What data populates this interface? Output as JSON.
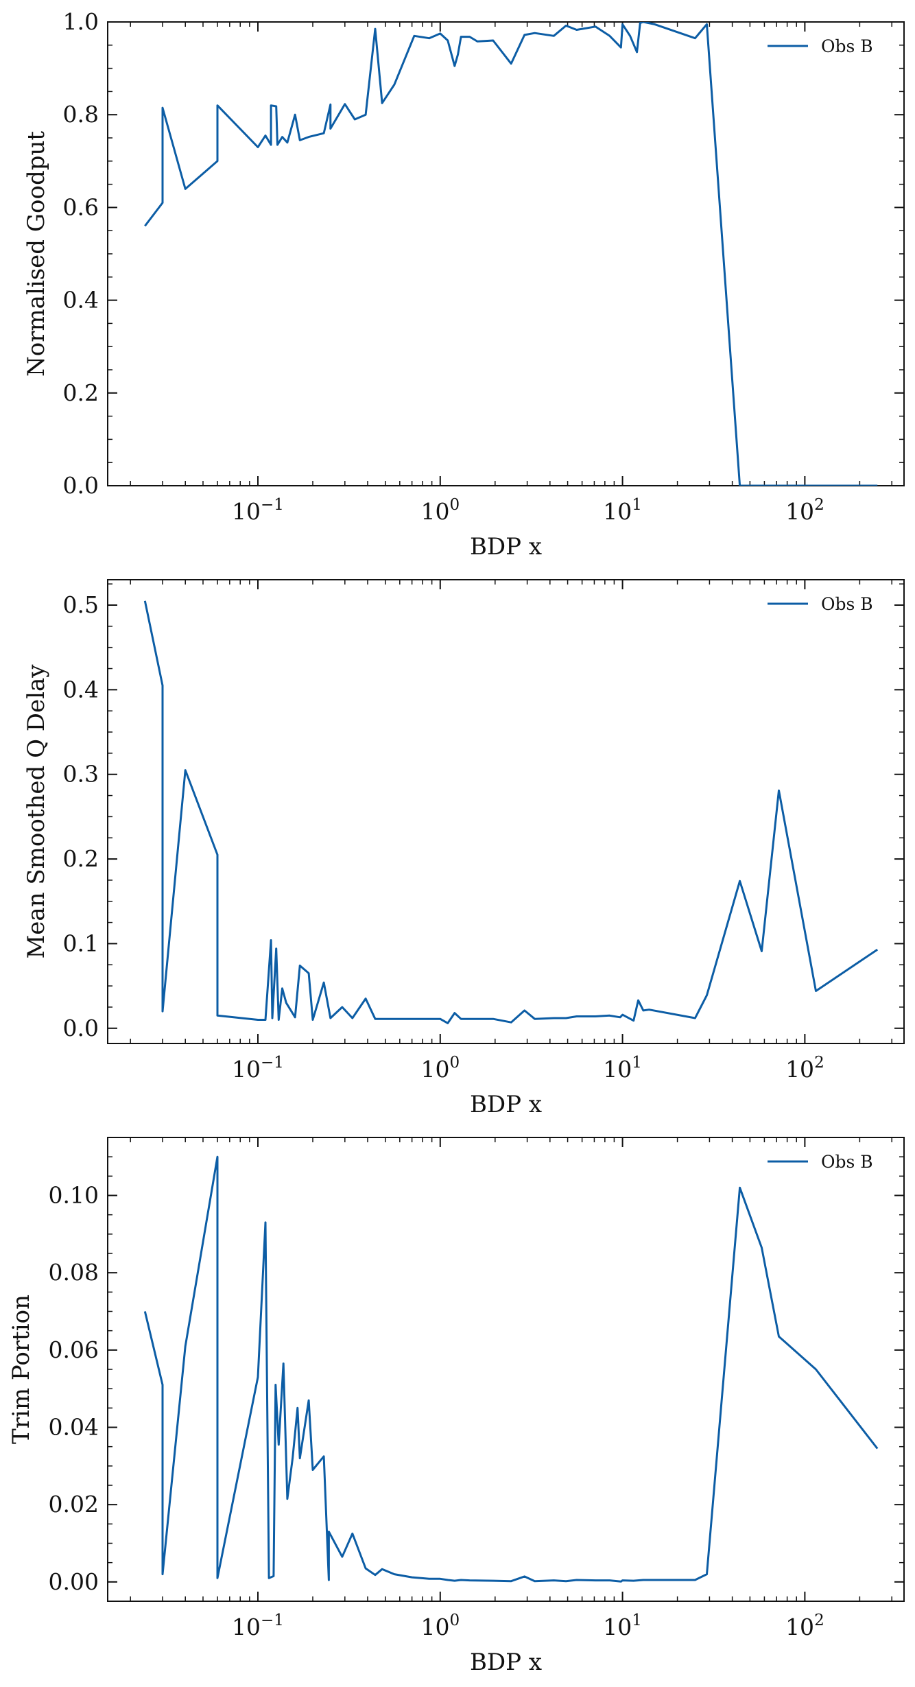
{
  "chart_data": [
    {
      "type": "line",
      "xlabel": "BDP x",
      "ylabel": "Normalised Goodput",
      "xscale": "log",
      "xlim": [
        0.015,
        350
      ],
      "ylim": [
        0,
        1.0
      ],
      "yticks": [
        0.0,
        0.2,
        0.4,
        0.6,
        0.8,
        1.0
      ],
      "ytick_labels": [
        "0.0",
        "0.2",
        "0.4",
        "0.6",
        "0.8",
        "1.0"
      ],
      "xtick_labels": [
        "10",
        "10",
        "10",
        "10"
      ],
      "xtick_exponents": [
        "−1",
        "0",
        "1",
        "2"
      ],
      "legend_position": "top-right",
      "series": [
        {
          "name": "Obs B",
          "color": "#0C5DA5",
          "x": [
            0.024,
            0.03,
            0.03,
            0.04,
            0.06,
            0.06,
            0.1,
            0.11,
            0.118,
            0.118,
            0.126,
            0.128,
            0.136,
            0.145,
            0.16,
            0.17,
            0.19,
            0.23,
            0.25,
            0.25,
            0.3,
            0.34,
            0.39,
            0.44,
            0.48,
            0.56,
            0.72,
            0.87,
            1.0,
            1.1,
            1.2,
            1.25,
            1.3,
            1.45,
            1.6,
            1.95,
            2.45,
            2.9,
            3.3,
            4.2,
            4.9,
            5.6,
            7.1,
            8.5,
            9.8,
            10.0,
            11.0,
            12.0,
            12.5,
            13.0,
            15.0,
            25.0,
            29.0,
            44.0,
            58.0,
            72.0,
            115.0,
            250.0
          ],
          "y": [
            0.56,
            0.61,
            0.815,
            0.64,
            0.7,
            0.82,
            0.73,
            0.755,
            0.735,
            0.82,
            0.818,
            0.735,
            0.752,
            0.74,
            0.8,
            0.745,
            0.752,
            0.76,
            0.822,
            0.77,
            0.823,
            0.79,
            0.8,
            0.985,
            0.825,
            0.865,
            0.97,
            0.965,
            0.975,
            0.96,
            0.905,
            0.93,
            0.968,
            0.968,
            0.958,
            0.96,
            0.91,
            0.972,
            0.976,
            0.97,
            0.992,
            0.983,
            0.99,
            0.97,
            0.945,
            0.995,
            0.97,
            0.935,
            0.998,
            1.0,
            0.995,
            0.965,
            0.995,
            0.0,
            0.0,
            0.0,
            0.0,
            0.0
          ]
        }
      ]
    },
    {
      "type": "line",
      "xlabel": "BDP x",
      "ylabel": "Mean Smoothed Q Delay",
      "xscale": "log",
      "xlim": [
        0.015,
        350
      ],
      "ylim": [
        -0.018,
        0.53
      ],
      "yticks": [
        0.0,
        0.1,
        0.2,
        0.3,
        0.4,
        0.5
      ],
      "ytick_labels": [
        "0.0",
        "0.1",
        "0.2",
        "0.3",
        "0.4",
        "0.5"
      ],
      "xtick_labels": [
        "10",
        "10",
        "10",
        "10"
      ],
      "xtick_exponents": [
        "−1",
        "0",
        "1",
        "2"
      ],
      "legend_position": "top-right",
      "series": [
        {
          "name": "Obs B",
          "color": "#0C5DA5",
          "x": [
            0.024,
            0.03,
            0.03,
            0.04,
            0.06,
            0.06,
            0.1,
            0.11,
            0.118,
            0.12,
            0.126,
            0.13,
            0.136,
            0.143,
            0.16,
            0.17,
            0.19,
            0.2,
            0.23,
            0.25,
            0.29,
            0.33,
            0.39,
            0.44,
            0.48,
            0.56,
            0.7,
            0.9,
            1.0,
            1.1,
            1.2,
            1.3,
            1.45,
            1.95,
            2.45,
            2.9,
            3.3,
            4.2,
            4.9,
            5.6,
            7.1,
            8.5,
            9.7,
            10.0,
            11.5,
            12.2,
            13.0,
            14.0,
            25.0,
            29.0,
            44.0,
            58.0,
            72.0,
            115.0,
            250.0
          ],
          "y": [
            0.505,
            0.405,
            0.02,
            0.305,
            0.205,
            0.015,
            0.01,
            0.01,
            0.104,
            0.012,
            0.094,
            0.01,
            0.047,
            0.03,
            0.013,
            0.074,
            0.065,
            0.01,
            0.054,
            0.012,
            0.025,
            0.012,
            0.035,
            0.011,
            0.011,
            0.011,
            0.011,
            0.011,
            0.011,
            0.006,
            0.018,
            0.011,
            0.011,
            0.011,
            0.007,
            0.021,
            0.011,
            0.012,
            0.012,
            0.014,
            0.014,
            0.015,
            0.013,
            0.016,
            0.009,
            0.033,
            0.021,
            0.022,
            0.012,
            0.039,
            0.174,
            0.091,
            0.281,
            0.044,
            0.093
          ]
        }
      ]
    },
    {
      "type": "line",
      "xlabel": "BDP x",
      "ylabel": "Trim Portion",
      "xscale": "log",
      "xlim": [
        0.015,
        350
      ],
      "ylim": [
        -0.005,
        0.115
      ],
      "yticks": [
        0.0,
        0.02,
        0.04,
        0.06,
        0.08,
        0.1
      ],
      "ytick_labels": [
        "0.00",
        "0.02",
        "0.04",
        "0.06",
        "0.08",
        "0.10"
      ],
      "xtick_labels": [
        "10",
        "10",
        "10",
        "10"
      ],
      "xtick_exponents": [
        "−1",
        "0",
        "1",
        "2"
      ],
      "legend_position": "top-right",
      "series": [
        {
          "name": "Obs B",
          "color": "#0C5DA5",
          "x": [
            0.024,
            0.03,
            0.03,
            0.04,
            0.06,
            0.06,
            0.1,
            0.11,
            0.115,
            0.122,
            0.125,
            0.13,
            0.138,
            0.145,
            0.155,
            0.165,
            0.17,
            0.19,
            0.2,
            0.23,
            0.245,
            0.245,
            0.29,
            0.33,
            0.39,
            0.44,
            0.48,
            0.56,
            0.7,
            0.87,
            1.0,
            1.1,
            1.2,
            1.3,
            1.45,
            1.95,
            2.45,
            2.9,
            3.3,
            4.2,
            4.9,
            5.6,
            7.1,
            8.5,
            9.8,
            10.0,
            11.5,
            13.0,
            25.0,
            29.0,
            44.0,
            58.0,
            72.0,
            115.0,
            250.0
          ],
          "y": [
            0.07,
            0.051,
            0.002,
            0.061,
            0.11,
            0.001,
            0.053,
            0.093,
            0.001,
            0.0015,
            0.051,
            0.0355,
            0.0565,
            0.0215,
            0.032,
            0.045,
            0.032,
            0.047,
            0.029,
            0.0325,
            0.0005,
            0.013,
            0.0065,
            0.0125,
            0.0035,
            0.0018,
            0.0033,
            0.002,
            0.0012,
            0.0008,
            0.0008,
            0.0005,
            0.0003,
            0.0005,
            0.0004,
            0.0003,
            0.0002,
            0.0014,
            0.0002,
            0.0004,
            0.0002,
            0.0005,
            0.0004,
            0.0004,
            0.0001,
            0.0004,
            0.0003,
            0.0005,
            0.0005,
            0.002,
            0.102,
            0.0865,
            0.0635,
            0.055,
            0.0345
          ]
        }
      ]
    }
  ]
}
